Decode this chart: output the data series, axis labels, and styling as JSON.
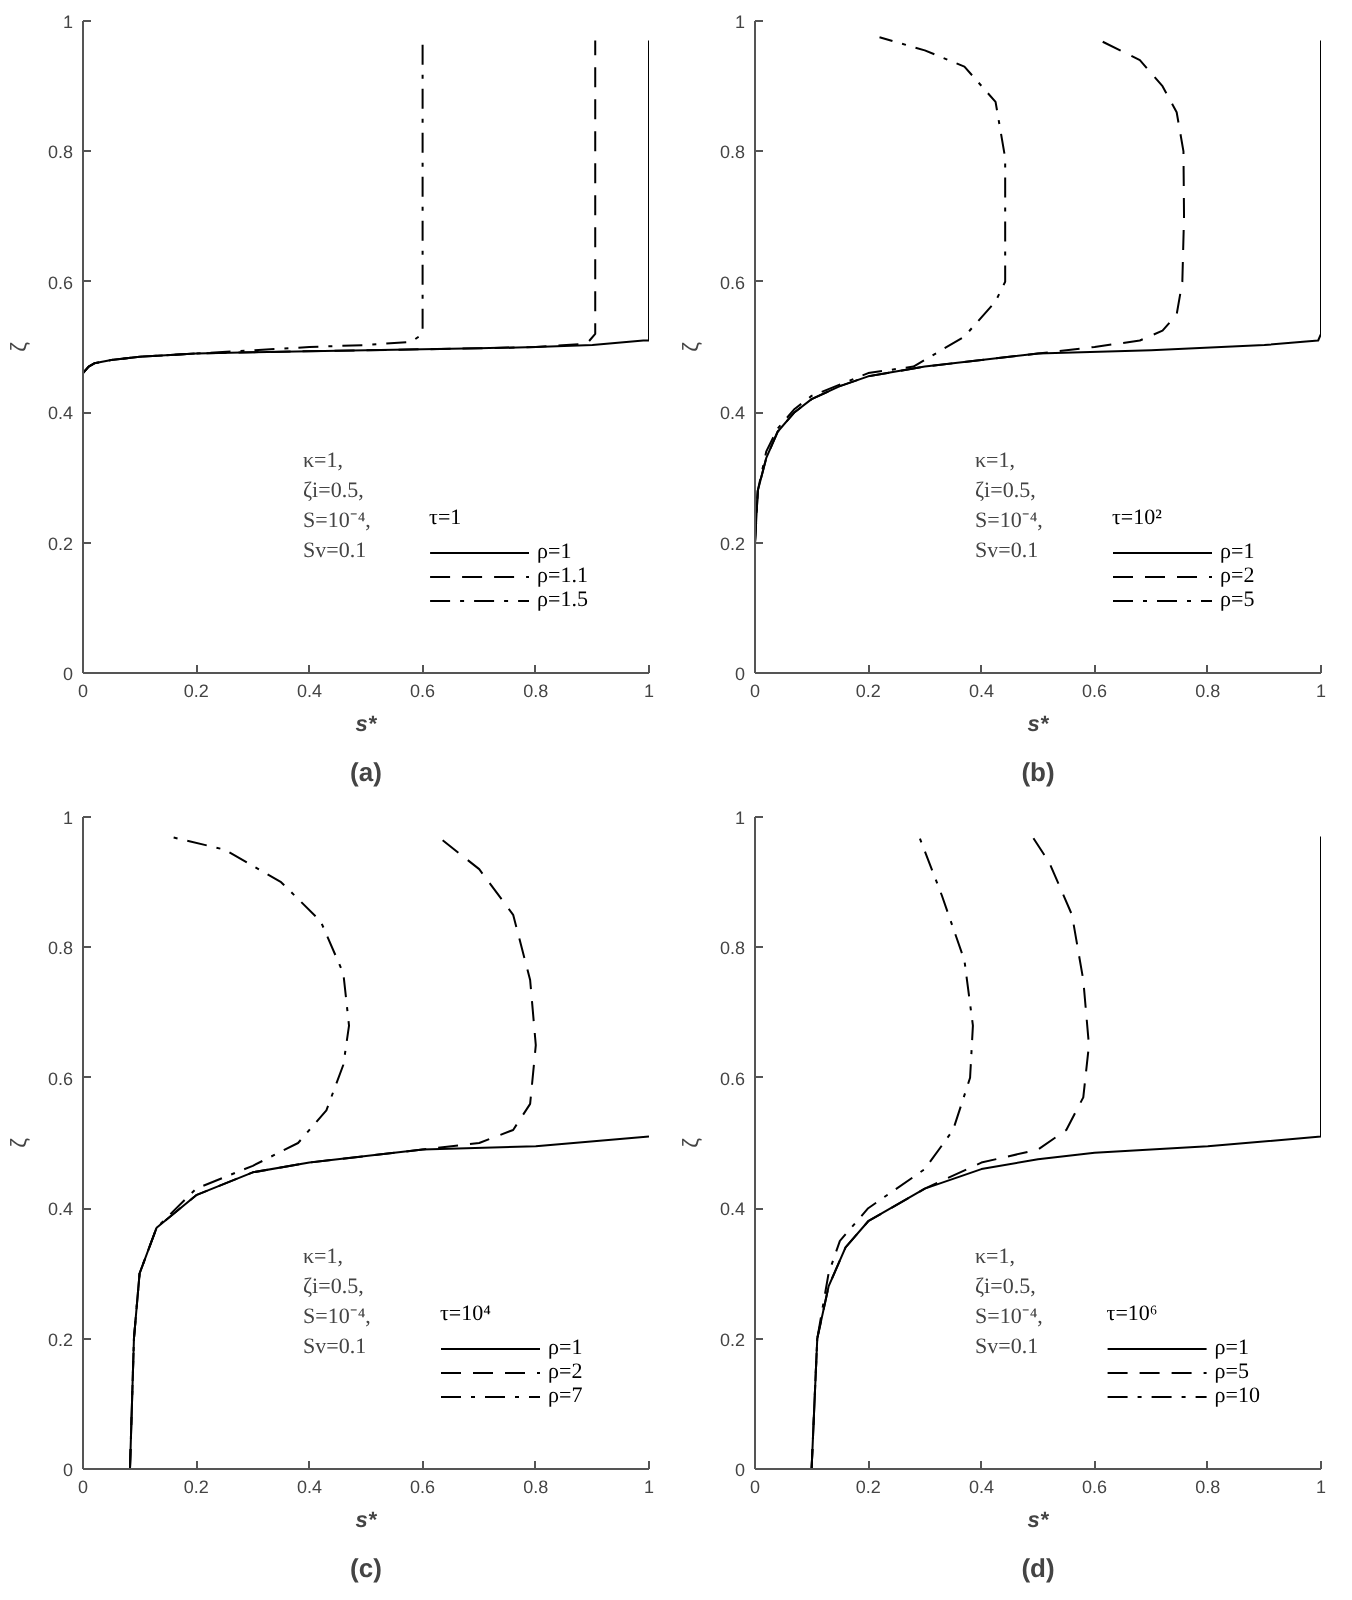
{
  "chart_data": [
    {
      "type": "line",
      "title": "(a)",
      "xlabel": "s*",
      "ylabel": "ζ",
      "legend_title": "τ=1",
      "legend": "bottom right",
      "grid": false,
      "xlim": [
        0,
        1
      ],
      "ylim": [
        0,
        1
      ],
      "xticks": [
        0,
        0.2,
        0.4,
        0.6,
        0.8,
        1
      ],
      "yticks": [
        0,
        0.2,
        0.4,
        0.6,
        0.8,
        1
      ],
      "annotations": [
        "κ=1,",
        "ζi=0.5,",
        "S=10⁻⁴,",
        "Sv=0.1"
      ],
      "series": [
        {
          "name": "ρ=1",
          "color": "#000000",
          "line_style": "solid",
          "x": [
            0,
            0.01,
            0.02,
            0.05,
            0.1,
            0.2,
            0.3,
            0.5,
            0.7,
            0.8,
            0.9,
            0.99,
            1,
            1,
            1
          ],
          "values": [
            0.46,
            0.47,
            0.475,
            0.48,
            0.485,
            0.49,
            0.492,
            0.495,
            0.498,
            0.5,
            0.503,
            0.51,
            0.51,
            0.555,
            0.97
          ]
        },
        {
          "name": "ρ=1.1",
          "color": "#000000",
          "line_style": "dashed",
          "x": [
            0,
            0.01,
            0.02,
            0.05,
            0.1,
            0.2,
            0.3,
            0.5,
            0.7,
            0.8,
            0.89,
            0.905,
            0.905
          ],
          "values": [
            0.46,
            0.47,
            0.475,
            0.48,
            0.485,
            0.49,
            0.492,
            0.495,
            0.498,
            0.5,
            0.505,
            0.52,
            0.97
          ]
        },
        {
          "name": "ρ=1.5",
          "color": "#000000",
          "line_style": "dashdot",
          "x": [
            0,
            0.01,
            0.02,
            0.05,
            0.1,
            0.2,
            0.3,
            0.4,
            0.5,
            0.58,
            0.6,
            0.6
          ],
          "values": [
            0.46,
            0.47,
            0.475,
            0.48,
            0.485,
            0.49,
            0.495,
            0.5,
            0.503,
            0.508,
            0.52,
            0.965
          ]
        }
      ]
    },
    {
      "type": "line",
      "title": "(b)",
      "xlabel": "s*",
      "ylabel": "ζ",
      "legend_title": "τ=10²",
      "legend": "bottom right",
      "grid": false,
      "xlim": [
        0,
        1
      ],
      "ylim": [
        0,
        1
      ],
      "xticks": [
        0,
        0.2,
        0.4,
        0.6,
        0.8,
        1
      ],
      "yticks": [
        0,
        0.2,
        0.4,
        0.6,
        0.8,
        1
      ],
      "annotations": [
        "κ=1,",
        "ζi=0.5,",
        "S=10⁻⁴,",
        "Sv=0.1"
      ],
      "series": [
        {
          "name": "ρ=1",
          "color": "#000000",
          "line_style": "solid",
          "x": [
            0,
            0.005,
            0.02,
            0.04,
            0.07,
            0.1,
            0.15,
            0.2,
            0.3,
            0.4,
            0.5,
            0.7,
            0.9,
            0.995,
            1,
            1
          ],
          "values": [
            0.2,
            0.28,
            0.33,
            0.37,
            0.4,
            0.42,
            0.44,
            0.455,
            0.47,
            0.48,
            0.49,
            0.495,
            0.503,
            0.51,
            0.52,
            0.97
          ]
        },
        {
          "name": "ρ=2",
          "color": "#000000",
          "line_style": "dashed",
          "x": [
            0,
            0.005,
            0.02,
            0.04,
            0.07,
            0.1,
            0.15,
            0.2,
            0.3,
            0.4,
            0.5,
            0.6,
            0.68,
            0.72,
            0.745,
            0.755,
            0.758,
            0.757,
            0.745,
            0.72,
            0.68,
            0.61
          ],
          "values": [
            0.2,
            0.28,
            0.33,
            0.37,
            0.4,
            0.42,
            0.44,
            0.455,
            0.47,
            0.48,
            0.49,
            0.5,
            0.51,
            0.525,
            0.55,
            0.6,
            0.7,
            0.8,
            0.86,
            0.9,
            0.94,
            0.97
          ]
        },
        {
          "name": "ρ=5",
          "color": "#000000",
          "line_style": "dashdot",
          "x": [
            0,
            0.005,
            0.02,
            0.04,
            0.07,
            0.1,
            0.2,
            0.28,
            0.37,
            0.425,
            0.442,
            0.442,
            0.425,
            0.37,
            0.3,
            0.22
          ],
          "values": [
            0.2,
            0.28,
            0.34,
            0.375,
            0.405,
            0.425,
            0.46,
            0.47,
            0.516,
            0.57,
            0.6,
            0.79,
            0.876,
            0.93,
            0.955,
            0.975
          ]
        }
      ]
    },
    {
      "type": "line",
      "title": "(c)",
      "xlabel": "s*",
      "ylabel": "ζ",
      "legend_title": "τ=10⁴",
      "legend": "bottom right",
      "grid": false,
      "xlim": [
        0,
        1
      ],
      "ylim": [
        0,
        1
      ],
      "xticks": [
        0,
        0.2,
        0.4,
        0.6,
        0.8,
        1
      ],
      "yticks": [
        0,
        0.2,
        0.4,
        0.6,
        0.8,
        1
      ],
      "annotations": [
        "κ=1,",
        "ζi=0.5,",
        "S=10⁻⁴,",
        "Sv=0.1"
      ],
      "series": [
        {
          "name": "ρ=1",
          "color": "#000000",
          "line_style": "solid",
          "x": [
            0.083,
            0.09,
            0.1,
            0.13,
            0.2,
            0.3,
            0.4,
            0.5,
            0.6,
            0.8,
            1
          ],
          "values": [
            0,
            0.2,
            0.3,
            0.37,
            0.42,
            0.455,
            0.47,
            0.48,
            0.49,
            0.495,
            0.51
          ]
        },
        {
          "name": "ρ=2",
          "color": "#000000",
          "line_style": "dashed",
          "x": [
            0.083,
            0.09,
            0.1,
            0.13,
            0.2,
            0.3,
            0.4,
            0.5,
            0.6,
            0.7,
            0.76,
            0.79,
            0.8,
            0.79,
            0.76,
            0.7,
            0.627
          ],
          "values": [
            0,
            0.2,
            0.3,
            0.37,
            0.42,
            0.455,
            0.47,
            0.48,
            0.49,
            0.5,
            0.52,
            0.56,
            0.65,
            0.75,
            0.85,
            0.92,
            0.97
          ]
        },
        {
          "name": "ρ=7",
          "color": "#000000",
          "line_style": "dashdot",
          "x": [
            0.083,
            0.09,
            0.1,
            0.13,
            0.2,
            0.3,
            0.38,
            0.43,
            0.46,
            0.47,
            0.46,
            0.42,
            0.35,
            0.25,
            0.153
          ],
          "values": [
            0,
            0.2,
            0.3,
            0.37,
            0.43,
            0.465,
            0.5,
            0.55,
            0.62,
            0.68,
            0.76,
            0.84,
            0.9,
            0.95,
            0.97
          ]
        }
      ]
    },
    {
      "type": "line",
      "title": "(d)",
      "xlabel": "s*",
      "ylabel": "ζ",
      "legend_title": "τ=10⁶",
      "legend": "bottom right",
      "grid": false,
      "xlim": [
        0,
        1
      ],
      "ylim": [
        0,
        1
      ],
      "xticks": [
        0,
        0.2,
        0.4,
        0.6,
        0.8,
        1
      ],
      "yticks": [
        0,
        0.2,
        0.4,
        0.6,
        0.8,
        1
      ],
      "annotations": [
        "κ=1,",
        "ζi=0.5,",
        "S=10⁻⁴,",
        "Sv=0.1"
      ],
      "series": [
        {
          "name": "ρ=1",
          "color": "#000000",
          "line_style": "solid",
          "x": [
            0.1,
            0.105,
            0.11,
            0.13,
            0.16,
            0.2,
            0.3,
            0.4,
            0.5,
            0.6,
            0.8,
            1,
            1
          ],
          "values": [
            0,
            0.1,
            0.2,
            0.28,
            0.34,
            0.38,
            0.43,
            0.46,
            0.475,
            0.485,
            0.495,
            0.51,
            0.97
          ]
        },
        {
          "name": "ρ=5",
          "color": "#000000",
          "line_style": "dashed",
          "x": [
            0.1,
            0.105,
            0.11,
            0.13,
            0.16,
            0.2,
            0.3,
            0.4,
            0.5,
            0.55,
            0.58,
            0.59,
            0.58,
            0.56,
            0.52,
            0.49
          ],
          "values": [
            0,
            0.1,
            0.2,
            0.28,
            0.34,
            0.38,
            0.43,
            0.47,
            0.49,
            0.52,
            0.57,
            0.65,
            0.75,
            0.85,
            0.93,
            0.97
          ]
        },
        {
          "name": "ρ=10",
          "color": "#000000",
          "line_style": "dashdot",
          "x": [
            0.1,
            0.105,
            0.11,
            0.13,
            0.15,
            0.2,
            0.3,
            0.35,
            0.38,
            0.385,
            0.37,
            0.33,
            0.29
          ],
          "values": [
            0,
            0.1,
            0.2,
            0.3,
            0.35,
            0.4,
            0.46,
            0.52,
            0.6,
            0.68,
            0.78,
            0.88,
            0.97
          ]
        }
      ]
    }
  ]
}
